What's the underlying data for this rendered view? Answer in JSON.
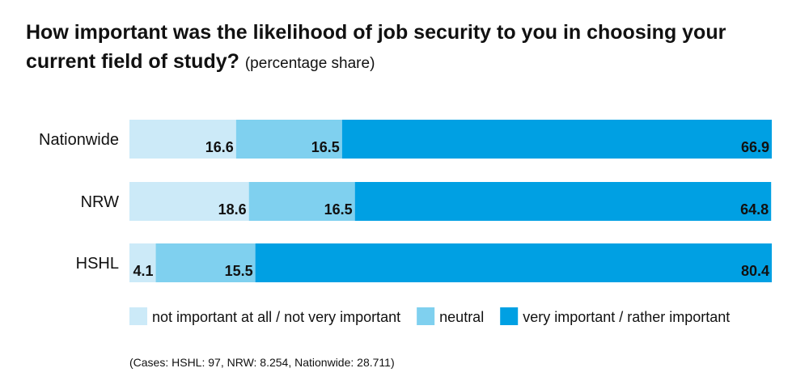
{
  "title": "How important was the likelihood of job security to you in choosing your current field of study?",
  "subtitle": "(percentage share)",
  "note": "(Cases: HSHL: 97, NRW: 8.254, Nationwide: 28.711)",
  "chart_data": {
    "type": "bar",
    "orientation": "horizontal",
    "stacked": true,
    "categories": [
      "Nationwide",
      "NRW",
      "HSHL"
    ],
    "series": [
      {
        "name": "not important at all / not very important",
        "color": "#cceaf8",
        "values": [
          16.6,
          18.6,
          4.1
        ]
      },
      {
        "name": "neutral",
        "color": "#7fd0ef",
        "values": [
          16.5,
          16.5,
          15.5
        ]
      },
      {
        "name": "very important / rather important",
        "color": "#00a0e3",
        "values": [
          66.9,
          64.8,
          80.4
        ]
      }
    ],
    "xlim": [
      0,
      100
    ],
    "grid": false,
    "legend": "bottom",
    "data_labels": true
  }
}
